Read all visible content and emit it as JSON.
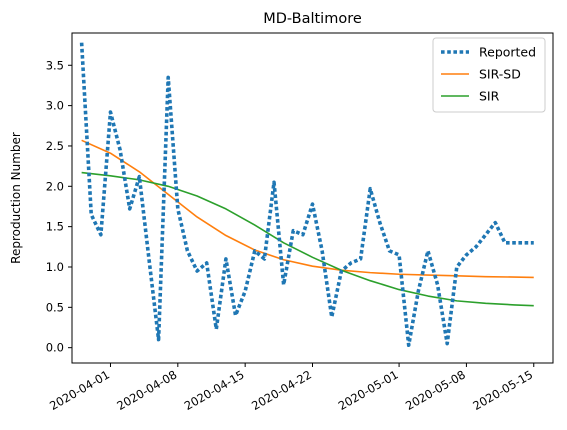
{
  "chart_data": {
    "type": "line",
    "title": "MD-Baltimore",
    "xlabel": "",
    "ylabel": "Reproduction Number",
    "x_start": "2020-03-29",
    "x_end": "2020-05-15",
    "xlim": [
      "2020-03-28",
      "2020-05-17"
    ],
    "ylim": [
      -0.19,
      3.9
    ],
    "x_ticks": [
      "2020-04-01",
      "2020-04-08",
      "2020-04-15",
      "2020-04-22",
      "2020-05-01",
      "2020-05-08",
      "2020-05-15"
    ],
    "y_ticks": [
      0.0,
      0.5,
      1.0,
      1.5,
      2.0,
      2.5,
      3.0,
      3.5
    ],
    "y_tick_labels": [
      "0.0",
      "0.5",
      "1.0",
      "1.5",
      "2.0",
      "2.5",
      "3.0",
      "3.5"
    ],
    "grid": false,
    "legend_position": "top-right",
    "series": [
      {
        "name": "Reported",
        "style": "dotted",
        "color": "#1f77b4",
        "x": [
          "2020-03-29",
          "2020-03-30",
          "2020-03-31",
          "2020-04-01",
          "2020-04-02",
          "2020-04-03",
          "2020-04-04",
          "2020-04-05",
          "2020-04-06",
          "2020-04-07",
          "2020-04-08",
          "2020-04-09",
          "2020-04-10",
          "2020-04-11",
          "2020-04-12",
          "2020-04-13",
          "2020-04-14",
          "2020-04-15",
          "2020-04-16",
          "2020-04-17",
          "2020-04-18",
          "2020-04-19",
          "2020-04-20",
          "2020-04-21",
          "2020-04-22",
          "2020-04-23",
          "2020-04-24",
          "2020-04-25",
          "2020-04-26",
          "2020-04-27",
          "2020-04-28",
          "2020-04-29",
          "2020-04-30",
          "2020-05-01",
          "2020-05-02",
          "2020-05-03",
          "2020-05-04",
          "2020-05-05",
          "2020-05-06",
          "2020-05-07",
          "2020-05-08",
          "2020-05-09",
          "2020-05-10",
          "2020-05-11",
          "2020-05-12",
          "2020-05-13",
          "2020-05-14",
          "2020-05-15"
        ],
        "values": [
          3.78,
          1.65,
          1.4,
          2.92,
          2.45,
          1.72,
          2.12,
          1.1,
          0.1,
          3.35,
          1.72,
          1.2,
          0.95,
          1.05,
          0.23,
          1.1,
          0.4,
          0.7,
          1.2,
          1.1,
          2.05,
          0.78,
          1.45,
          1.4,
          1.78,
          1.2,
          0.38,
          0.95,
          1.05,
          1.1,
          1.97,
          1.55,
          1.2,
          1.15,
          0.03,
          0.7,
          1.2,
          0.78,
          0.05,
          1.0,
          1.15,
          1.25,
          1.4,
          1.55,
          1.3,
          1.3,
          1.3,
          1.3
        ]
      },
      {
        "name": "SIR-SD",
        "style": "solid",
        "color": "#ff7f0e",
        "x": [
          "2020-03-29",
          "2020-04-01",
          "2020-04-04",
          "2020-04-07",
          "2020-04-10",
          "2020-04-13",
          "2020-04-16",
          "2020-04-19",
          "2020-04-22",
          "2020-04-25",
          "2020-04-28",
          "2020-05-01",
          "2020-05-04",
          "2020-05-07",
          "2020-05-10",
          "2020-05-13",
          "2020-05-15"
        ],
        "values": [
          2.57,
          2.41,
          2.18,
          1.9,
          1.62,
          1.39,
          1.21,
          1.09,
          1.01,
          0.96,
          0.93,
          0.91,
          0.9,
          0.89,
          0.88,
          0.875,
          0.87
        ]
      },
      {
        "name": "SIR",
        "style": "solid",
        "color": "#2ca02c",
        "x": [
          "2020-03-29",
          "2020-04-01",
          "2020-04-04",
          "2020-04-07",
          "2020-04-10",
          "2020-04-13",
          "2020-04-16",
          "2020-04-19",
          "2020-04-22",
          "2020-04-25",
          "2020-04-28",
          "2020-05-01",
          "2020-05-04",
          "2020-05-07",
          "2020-05-10",
          "2020-05-13",
          "2020-05-15"
        ],
        "values": [
          2.17,
          2.13,
          2.08,
          2.0,
          1.88,
          1.72,
          1.52,
          1.3,
          1.12,
          0.96,
          0.83,
          0.72,
          0.64,
          0.58,
          0.55,
          0.53,
          0.52
        ]
      }
    ]
  }
}
